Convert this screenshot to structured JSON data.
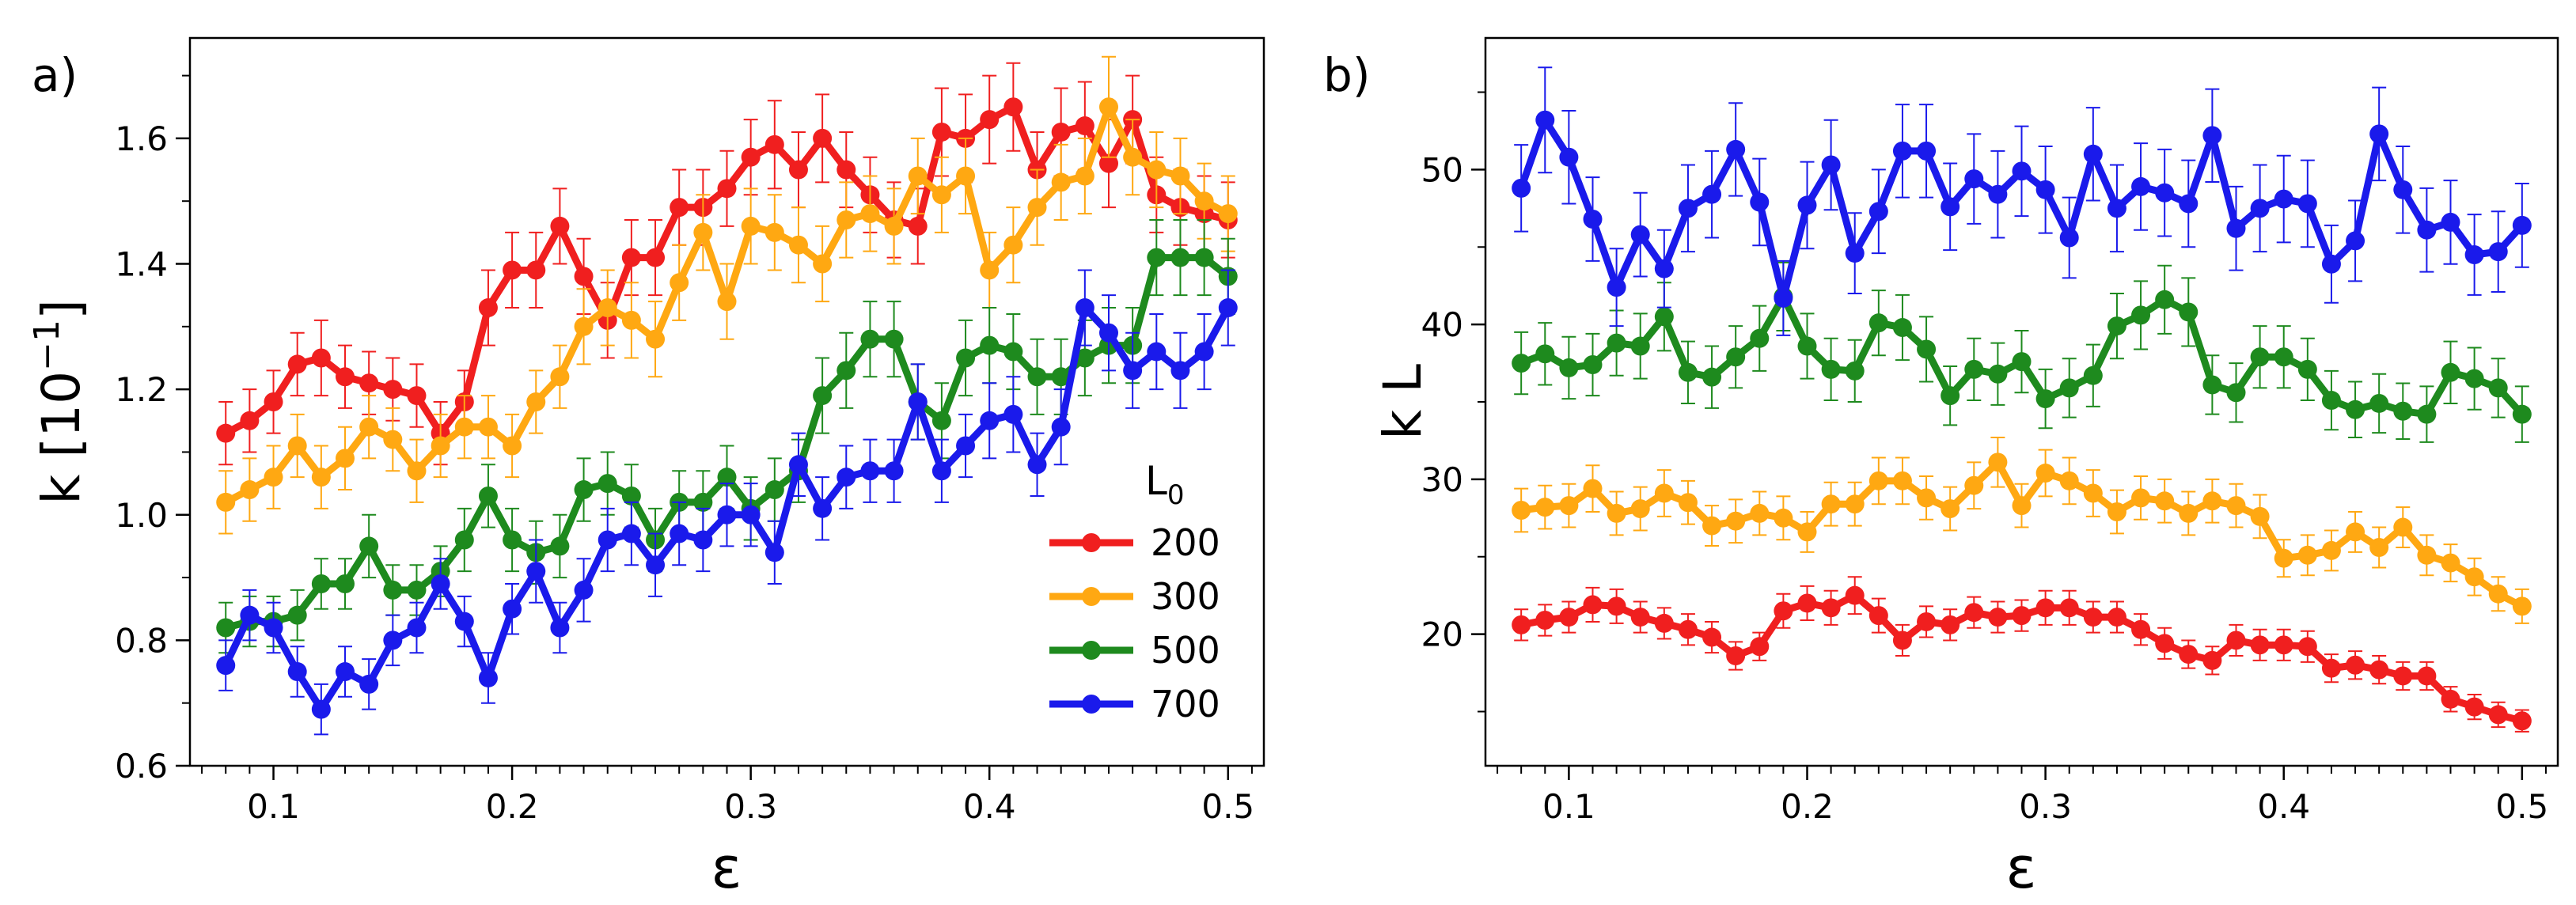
{
  "chart_data": [
    {
      "type": "line",
      "panel_label": "a)",
      "xlabel": "ε",
      "ylabel": "k  [10",
      "ylabel_sup": "−1",
      "ylabel_close": "]",
      "xlim": [
        0.065,
        0.515
      ],
      "ylim": [
        0.6,
        1.76
      ],
      "xticks": [
        0.1,
        0.2,
        0.3,
        0.4,
        0.5
      ],
      "xtick_labels": [
        "0.1",
        "0.2",
        "0.3",
        "0.4",
        "0.5"
      ],
      "yticks": [
        0.6,
        0.8,
        1.0,
        1.2,
        1.4,
        1.6
      ],
      "ytick_labels": [
        "0.6",
        "0.8",
        "1.0",
        "1.2",
        "1.4",
        "1.6"
      ],
      "legend": {
        "title": "L",
        "title_sub": "0",
        "position": "bottom-right",
        "entries": [
          "200",
          "300",
          "500",
          "700"
        ]
      },
      "x": [
        0.08,
        0.09,
        0.1,
        0.11,
        0.12,
        0.13,
        0.14,
        0.15,
        0.16,
        0.17,
        0.18,
        0.19,
        0.2,
        0.21,
        0.22,
        0.23,
        0.24,
        0.25,
        0.26,
        0.27,
        0.28,
        0.29,
        0.3,
        0.31,
        0.32,
        0.33,
        0.34,
        0.35,
        0.36,
        0.37,
        0.38,
        0.39,
        0.4,
        0.41,
        0.42,
        0.43,
        0.44,
        0.45,
        0.46,
        0.47,
        0.48,
        0.49,
        0.5
      ],
      "series": [
        {
          "name": "200",
          "color": "#f01f1f",
          "values": [
            1.13,
            1.15,
            1.18,
            1.24,
            1.25,
            1.22,
            1.21,
            1.2,
            1.19,
            1.13,
            1.18,
            1.33,
            1.39,
            1.39,
            1.46,
            1.38,
            1.31,
            1.41,
            1.41,
            1.49,
            1.49,
            1.52,
            1.57,
            1.59,
            1.55,
            1.6,
            1.55,
            1.51,
            1.47,
            1.46,
            1.61,
            1.6,
            1.63,
            1.65,
            1.55,
            1.61,
            1.62,
            1.56,
            1.63,
            1.51,
            1.49,
            1.48,
            1.47
          ],
          "errors": [
            0.05,
            0.05,
            0.05,
            0.05,
            0.06,
            0.05,
            0.05,
            0.05,
            0.05,
            0.05,
            0.05,
            0.06,
            0.06,
            0.06,
            0.06,
            0.06,
            0.06,
            0.06,
            0.06,
            0.06,
            0.06,
            0.06,
            0.06,
            0.07,
            0.06,
            0.07,
            0.06,
            0.06,
            0.06,
            0.06,
            0.07,
            0.07,
            0.07,
            0.07,
            0.06,
            0.07,
            0.07,
            0.07,
            0.07,
            0.06,
            0.06,
            0.06,
            0.06
          ]
        },
        {
          "name": "300",
          "color": "#ffa812",
          "values": [
            1.02,
            1.04,
            1.06,
            1.11,
            1.06,
            1.09,
            1.14,
            1.12,
            1.07,
            1.11,
            1.14,
            1.14,
            1.11,
            1.18,
            1.22,
            1.3,
            1.33,
            1.31,
            1.28,
            1.37,
            1.45,
            1.34,
            1.46,
            1.45,
            1.43,
            1.4,
            1.47,
            1.48,
            1.46,
            1.54,
            1.51,
            1.54,
            1.39,
            1.43,
            1.49,
            1.53,
            1.54,
            1.65,
            1.57,
            1.55,
            1.54,
            1.5,
            1.48
          ],
          "errors": [
            0.05,
            0.05,
            0.05,
            0.05,
            0.05,
            0.05,
            0.05,
            0.05,
            0.05,
            0.05,
            0.05,
            0.05,
            0.05,
            0.05,
            0.05,
            0.06,
            0.06,
            0.06,
            0.06,
            0.06,
            0.06,
            0.06,
            0.06,
            0.06,
            0.06,
            0.06,
            0.06,
            0.06,
            0.06,
            0.06,
            0.06,
            0.06,
            0.06,
            0.06,
            0.06,
            0.06,
            0.06,
            0.08,
            0.06,
            0.06,
            0.06,
            0.06,
            0.06
          ]
        },
        {
          "name": "500",
          "color": "#1e8a1e",
          "values": [
            0.82,
            0.83,
            0.83,
            0.84,
            0.89,
            0.89,
            0.95,
            0.88,
            0.88,
            0.91,
            0.96,
            1.03,
            0.96,
            0.94,
            0.95,
            1.04,
            1.05,
            1.03,
            0.96,
            1.02,
            1.02,
            1.06,
            1.01,
            1.04,
            1.07,
            1.19,
            1.23,
            1.28,
            1.28,
            1.18,
            1.15,
            1.25,
            1.27,
            1.26,
            1.22,
            1.22,
            1.25,
            1.27,
            1.27,
            1.41,
            1.41,
            1.41,
            1.38
          ],
          "errors": [
            0.04,
            0.04,
            0.04,
            0.04,
            0.04,
            0.04,
            0.05,
            0.04,
            0.04,
            0.04,
            0.05,
            0.05,
            0.05,
            0.05,
            0.05,
            0.05,
            0.05,
            0.05,
            0.05,
            0.05,
            0.05,
            0.05,
            0.05,
            0.05,
            0.05,
            0.06,
            0.06,
            0.06,
            0.06,
            0.06,
            0.06,
            0.06,
            0.06,
            0.06,
            0.06,
            0.06,
            0.06,
            0.06,
            0.06,
            0.06,
            0.06,
            0.06,
            0.06
          ]
        },
        {
          "name": "700",
          "color": "#1a1aeb",
          "values": [
            0.76,
            0.84,
            0.82,
            0.75,
            0.69,
            0.75,
            0.73,
            0.8,
            0.82,
            0.89,
            0.83,
            0.74,
            0.85,
            0.91,
            0.82,
            0.88,
            0.96,
            0.97,
            0.92,
            0.97,
            0.96,
            1.0,
            1.0,
            0.94,
            1.08,
            1.01,
            1.06,
            1.07,
            1.07,
            1.18,
            1.07,
            1.11,
            1.15,
            1.16,
            1.08,
            1.14,
            1.33,
            1.29,
            1.23,
            1.26,
            1.23,
            1.26,
            1.33
          ],
          "errors": [
            0.04,
            0.04,
            0.04,
            0.04,
            0.04,
            0.04,
            0.04,
            0.04,
            0.04,
            0.04,
            0.04,
            0.04,
            0.04,
            0.05,
            0.04,
            0.05,
            0.05,
            0.05,
            0.05,
            0.05,
            0.05,
            0.05,
            0.05,
            0.05,
            0.05,
            0.05,
            0.05,
            0.05,
            0.05,
            0.06,
            0.05,
            0.05,
            0.06,
            0.06,
            0.05,
            0.06,
            0.06,
            0.06,
            0.06,
            0.06,
            0.06,
            0.06,
            0.06
          ]
        }
      ]
    },
    {
      "type": "line",
      "panel_label": "b)",
      "xlabel": "ε",
      "ylabel": "k L",
      "xlim": [
        0.065,
        0.515
      ],
      "ylim": [
        11.5,
        58.5
      ],
      "xticks": [
        0.1,
        0.2,
        0.3,
        0.4,
        0.5
      ],
      "xtick_labels": [
        "0.1",
        "0.2",
        "0.3",
        "0.4",
        "0.5"
      ],
      "yticks": [
        20,
        30,
        40,
        50
      ],
      "ytick_labels": [
        "20",
        "30",
        "40",
        "50"
      ],
      "x": [
        0.08,
        0.09,
        0.1,
        0.11,
        0.12,
        0.13,
        0.14,
        0.15,
        0.16,
        0.17,
        0.18,
        0.19,
        0.2,
        0.21,
        0.22,
        0.23,
        0.24,
        0.25,
        0.26,
        0.27,
        0.28,
        0.29,
        0.3,
        0.31,
        0.32,
        0.33,
        0.34,
        0.35,
        0.36,
        0.37,
        0.38,
        0.39,
        0.4,
        0.41,
        0.42,
        0.43,
        0.44,
        0.45,
        0.46,
        0.47,
        0.48,
        0.49,
        0.5
      ],
      "series": [
        {
          "name": "200",
          "color": "#f01f1f",
          "values": [
            20.6,
            20.9,
            21.1,
            21.9,
            21.8,
            21.1,
            20.7,
            20.3,
            19.8,
            18.6,
            19.2,
            21.5,
            22.0,
            21.7,
            22.5,
            21.2,
            19.6,
            20.8,
            20.6,
            21.4,
            21.1,
            21.2,
            21.7,
            21.7,
            21.1,
            21.1,
            20.3,
            19.4,
            18.7,
            18.3,
            19.6,
            19.3,
            19.3,
            19.2,
            17.8,
            18.0,
            17.7,
            17.3,
            17.3,
            15.8,
            15.3,
            14.8,
            14.4
          ],
          "errors": [
            1.0,
            1.0,
            1.0,
            1.1,
            1.1,
            1.0,
            1.0,
            1.0,
            1.0,
            0.9,
            0.9,
            1.1,
            1.1,
            1.1,
            1.2,
            1.1,
            1.0,
            1.0,
            1.0,
            1.0,
            1.0,
            1.0,
            1.1,
            1.1,
            1.0,
            1.0,
            1.0,
            1.0,
            0.9,
            0.9,
            1.0,
            1.0,
            1.0,
            1.0,
            0.9,
            0.9,
            0.9,
            0.9,
            0.9,
            0.8,
            0.8,
            0.8,
            0.7
          ]
        },
        {
          "name": "300",
          "color": "#ffa812",
          "values": [
            28.0,
            28.2,
            28.3,
            29.4,
            27.8,
            28.1,
            29.1,
            28.5,
            27.0,
            27.3,
            27.8,
            27.5,
            26.6,
            28.4,
            28.4,
            29.9,
            29.9,
            28.8,
            28.1,
            29.6,
            31.1,
            28.3,
            30.4,
            29.9,
            29.1,
            27.9,
            28.8,
            28.6,
            27.8,
            28.6,
            28.3,
            27.6,
            24.9,
            25.1,
            25.4,
            26.6,
            25.6,
            26.9,
            25.1,
            24.6,
            23.7,
            22.6,
            21.8
          ],
          "errors": [
            1.4,
            1.4,
            1.4,
            1.5,
            1.4,
            1.4,
            1.5,
            1.4,
            1.3,
            1.4,
            1.4,
            1.4,
            1.3,
            1.4,
            1.4,
            1.5,
            1.5,
            1.4,
            1.4,
            1.5,
            1.6,
            1.4,
            1.5,
            1.5,
            1.5,
            1.4,
            1.4,
            1.4,
            1.4,
            1.4,
            1.4,
            1.4,
            1.2,
            1.3,
            1.3,
            1.3,
            1.3,
            1.3,
            1.3,
            1.2,
            1.2,
            1.1,
            1.1
          ]
        },
        {
          "name": "500",
          "color": "#1e8a1e",
          "values": [
            37.5,
            38.1,
            37.2,
            37.4,
            38.8,
            38.6,
            40.5,
            36.9,
            36.6,
            37.9,
            39.1,
            41.8,
            38.6,
            37.1,
            37.0,
            40.1,
            39.8,
            38.4,
            35.4,
            37.1,
            36.8,
            37.6,
            35.2,
            35.9,
            36.7,
            39.9,
            40.6,
            41.6,
            40.8,
            36.1,
            35.6,
            37.9,
            37.9,
            37.1,
            35.1,
            34.5,
            34.9,
            34.4,
            34.2,
            36.9,
            36.5,
            35.9,
            34.2
          ],
          "errors": [
            2.0,
            2.0,
            2.0,
            2.0,
            2.1,
            2.1,
            2.2,
            2.0,
            2.0,
            2.0,
            2.1,
            2.2,
            2.1,
            2.0,
            2.0,
            2.1,
            2.1,
            2.1,
            1.9,
            2.0,
            2.0,
            2.0,
            1.9,
            1.9,
            2.0,
            2.1,
            2.2,
            2.2,
            2.2,
            1.9,
            1.9,
            2.0,
            2.0,
            2.0,
            1.9,
            1.8,
            1.9,
            1.8,
            1.8,
            2.0,
            2.0,
            1.9,
            1.8
          ]
        },
        {
          "name": "700",
          "color": "#1a1aeb",
          "values": [
            48.8,
            53.2,
            50.8,
            46.8,
            42.4,
            45.8,
            43.6,
            47.5,
            48.4,
            51.3,
            47.9,
            41.7,
            47.7,
            50.3,
            44.6,
            47.3,
            51.2,
            51.2,
            47.6,
            49.4,
            48.4,
            49.9,
            48.7,
            45.6,
            51.0,
            47.5,
            48.9,
            48.5,
            47.8,
            52.2,
            46.2,
            47.5,
            48.1,
            47.8,
            43.9,
            45.4,
            52.3,
            48.7,
            46.1,
            46.6,
            44.5,
            44.7,
            46.4
          ],
          "errors": [
            2.8,
            3.4,
            3.0,
            2.7,
            2.5,
            2.7,
            2.5,
            2.8,
            2.8,
            3.0,
            2.8,
            2.4,
            2.8,
            2.9,
            2.6,
            2.7,
            3.0,
            3.0,
            2.8,
            2.9,
            2.8,
            2.9,
            2.8,
            2.6,
            3.0,
            2.8,
            2.8,
            2.8,
            2.8,
            3.0,
            2.7,
            2.8,
            2.8,
            2.8,
            2.5,
            2.6,
            3.0,
            2.8,
            2.7,
            2.7,
            2.6,
            2.6,
            2.7
          ]
        }
      ]
    }
  ]
}
